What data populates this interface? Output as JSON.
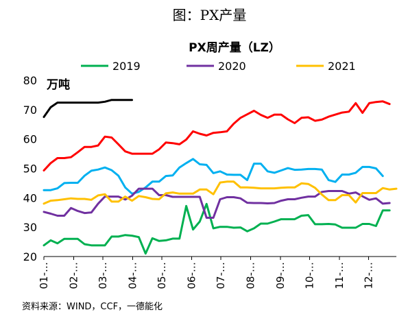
{
  "figure_caption": "图：PX产量",
  "source_note": "资料来源：WIND，CCF，一德能化",
  "chart_data": {
    "type": "line",
    "title": "PX周产量（LZ）",
    "unit_label": "万吨",
    "ylim": [
      20,
      80
    ],
    "yticks": [
      20,
      30,
      40,
      50,
      60,
      70,
      80
    ],
    "xlim": [
      0,
      52
    ],
    "xticks": [
      {
        "label": "01-…",
        "x": 0
      },
      {
        "label": "02-…",
        "x": 4.4
      },
      {
        "label": "03-…",
        "x": 8.7
      },
      {
        "label": "04-…",
        "x": 13.1
      },
      {
        "label": "05-…",
        "x": 17.4
      },
      {
        "label": "06-…",
        "x": 21.8
      },
      {
        "label": "07-…",
        "x": 26.1
      },
      {
        "label": "08-…",
        "x": 30.5
      },
      {
        "label": "09-…",
        "x": 34.9
      },
      {
        "label": "10-…",
        "x": 39.2
      },
      {
        "label": "11-…",
        "x": 43.6
      },
      {
        "label": "12-…",
        "x": 47.9
      }
    ],
    "grid": false,
    "legend_position": "top",
    "series": [
      {
        "name": "",
        "color": "#000000",
        "values": [
          67.5,
          70.8,
          72.4,
          72.4,
          72.4,
          72.4,
          72.4,
          72.4,
          72.4,
          72.7,
          73.3,
          73.3,
          73.3,
          73.3
        ]
      },
      {
        "name": "",
        "color": "#ff0000",
        "values": [
          49.3,
          51.8,
          53.5,
          53.5,
          53.8,
          55.5,
          57.3,
          57.3,
          57.8,
          60.8,
          60.5,
          58.2,
          55.8,
          55,
          55,
          55,
          55,
          56.5,
          58.8,
          58.6,
          58.2,
          59.8,
          62.6,
          61.8,
          61.2,
          62.1,
          62.3,
          62.6,
          65.2,
          67.2,
          68.4,
          69.6,
          68.2,
          67.2,
          68.3,
          68.3,
          66.7,
          65.4,
          67.2,
          67.4,
          66.2,
          66.6,
          67.6,
          68.3,
          69,
          69.3,
          72.2,
          68.9,
          72.2,
          72.6,
          72.8,
          71.9
        ]
      },
      {
        "name": "",
        "color": "#00b0f0",
        "values": [
          42.6,
          42.6,
          43.2,
          45,
          45.1,
          45.1,
          47.5,
          49.2,
          49.6,
          50.3,
          49.4,
          47.5,
          43.5,
          41.4,
          42,
          43.5,
          45.5,
          45.5,
          47.4,
          47.6,
          50.3,
          51.8,
          53.2,
          51.4,
          51.2,
          48.4,
          49,
          47.9,
          47.8,
          47.8,
          46,
          51.6,
          51.6,
          49,
          48.5,
          49.3,
          50.1,
          49.5,
          49.6,
          49.8,
          49.8,
          49.6,
          46,
          45.4,
          47.9,
          47.9,
          48.5,
          50.5,
          50.5,
          50,
          47.4
        ]
      },
      {
        "name": "2019",
        "color": "#00b050",
        "values": [
          23.8,
          25.5,
          24.5,
          26,
          26,
          26,
          24.2,
          23.8,
          23.8,
          23.8,
          26.8,
          26.8,
          27.3,
          27.1,
          26.6,
          21,
          26.2,
          25.3,
          25.5,
          26.1,
          26.1,
          37.2,
          29.2,
          31.9,
          37.9,
          29.6,
          30.1,
          30.1,
          29.8,
          29.9,
          28.6,
          29.6,
          31.2,
          31.2,
          31.9,
          32.7,
          32.7,
          32.7,
          33.9,
          34.1,
          31,
          31,
          31.1,
          30.9,
          29.8,
          29.8,
          29.8,
          31.1,
          31.1,
          30.4,
          35.7,
          35.7
        ]
      },
      {
        "name": "2020",
        "color": "#7030a0",
        "values": [
          35.2,
          34.6,
          33.9,
          33.9,
          36.5,
          35.5,
          34.8,
          35,
          38,
          40.4,
          40.4,
          40.4,
          39.4,
          40.7,
          43.1,
          43.1,
          43.1,
          40.9,
          40.9,
          40.3,
          40.3,
          40.3,
          40.3,
          40.3,
          33.2,
          33.2,
          39.5,
          40.2,
          40.2,
          39.8,
          38.3,
          38.2,
          38.2,
          38.1,
          38.2,
          39,
          39.5,
          39.5,
          40,
          40.4,
          40.4,
          42,
          42.3,
          42.3,
          42.3,
          41.4,
          41.8,
          40.5,
          39.3,
          39.8,
          38,
          38.2
        ]
      },
      {
        "name": "2021",
        "color": "#ffc000",
        "values": [
          38,
          39,
          39.2,
          39.5,
          39.8,
          39.6,
          39.6,
          39.3,
          40.8,
          41.2,
          38.7,
          38.7,
          40.4,
          39,
          40.6,
          40.2,
          39.6,
          39.5,
          41.5,
          41.8,
          41.4,
          41.4,
          41.4,
          42.8,
          42.8,
          41.2,
          45.2,
          45.5,
          45.5,
          43.5,
          43.5,
          43.4,
          43.2,
          43.2,
          43.2,
          43.4,
          43.5,
          43.5,
          44.9,
          44.7,
          43.4,
          41.1,
          39.2,
          39.2,
          40.9,
          40.9,
          38.4,
          41.6,
          41.6,
          41.6,
          43.3,
          42.8,
          43.1
        ]
      }
    ]
  }
}
